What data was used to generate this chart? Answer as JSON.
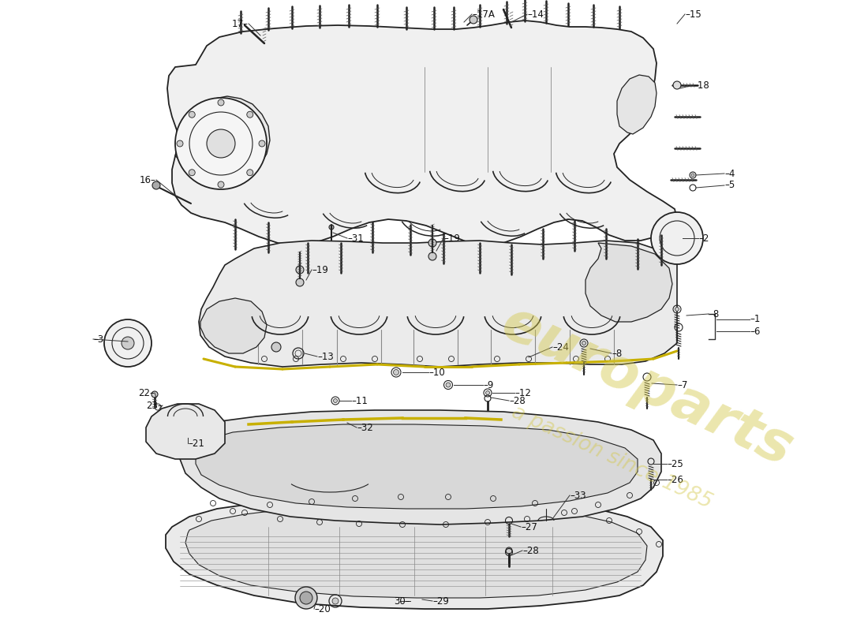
{
  "bg_color": "#ffffff",
  "line_color": "#222222",
  "watermark1": "europarts",
  "watermark2": "a passion since 1985",
  "wm_color": "#d4c84a",
  "wm_alpha": 0.45,
  "labels": [
    [
      "1",
      940,
      405
    ],
    [
      "2",
      870,
      300
    ],
    [
      "3",
      148,
      430
    ],
    [
      "4",
      910,
      215
    ],
    [
      "5",
      910,
      232
    ],
    [
      "6",
      940,
      422
    ],
    [
      "7",
      840,
      490
    ],
    [
      "8",
      880,
      400
    ],
    [
      "8",
      760,
      445
    ],
    [
      "9",
      600,
      488
    ],
    [
      "10",
      530,
      473
    ],
    [
      "11",
      430,
      508
    ],
    [
      "12",
      640,
      498
    ],
    [
      "13",
      390,
      453
    ],
    [
      "14",
      660,
      18
    ],
    [
      "15",
      860,
      18
    ],
    [
      "16",
      192,
      230
    ],
    [
      "17",
      310,
      32
    ],
    [
      "17A",
      592,
      18
    ],
    [
      "18",
      872,
      108
    ],
    [
      "19",
      558,
      302
    ],
    [
      "19",
      388,
      342
    ],
    [
      "20",
      388,
      772
    ],
    [
      "21",
      228,
      563
    ],
    [
      "22",
      188,
      498
    ],
    [
      "23",
      188,
      512
    ],
    [
      "24",
      688,
      440
    ],
    [
      "25",
      840,
      590
    ],
    [
      "26",
      840,
      608
    ],
    [
      "27",
      660,
      668
    ],
    [
      "28",
      640,
      508
    ],
    [
      "28",
      658,
      700
    ],
    [
      "29",
      545,
      762
    ],
    [
      "30",
      518,
      762
    ],
    [
      "31",
      432,
      302
    ],
    [
      "32",
      448,
      542
    ],
    [
      "33",
      718,
      628
    ]
  ]
}
